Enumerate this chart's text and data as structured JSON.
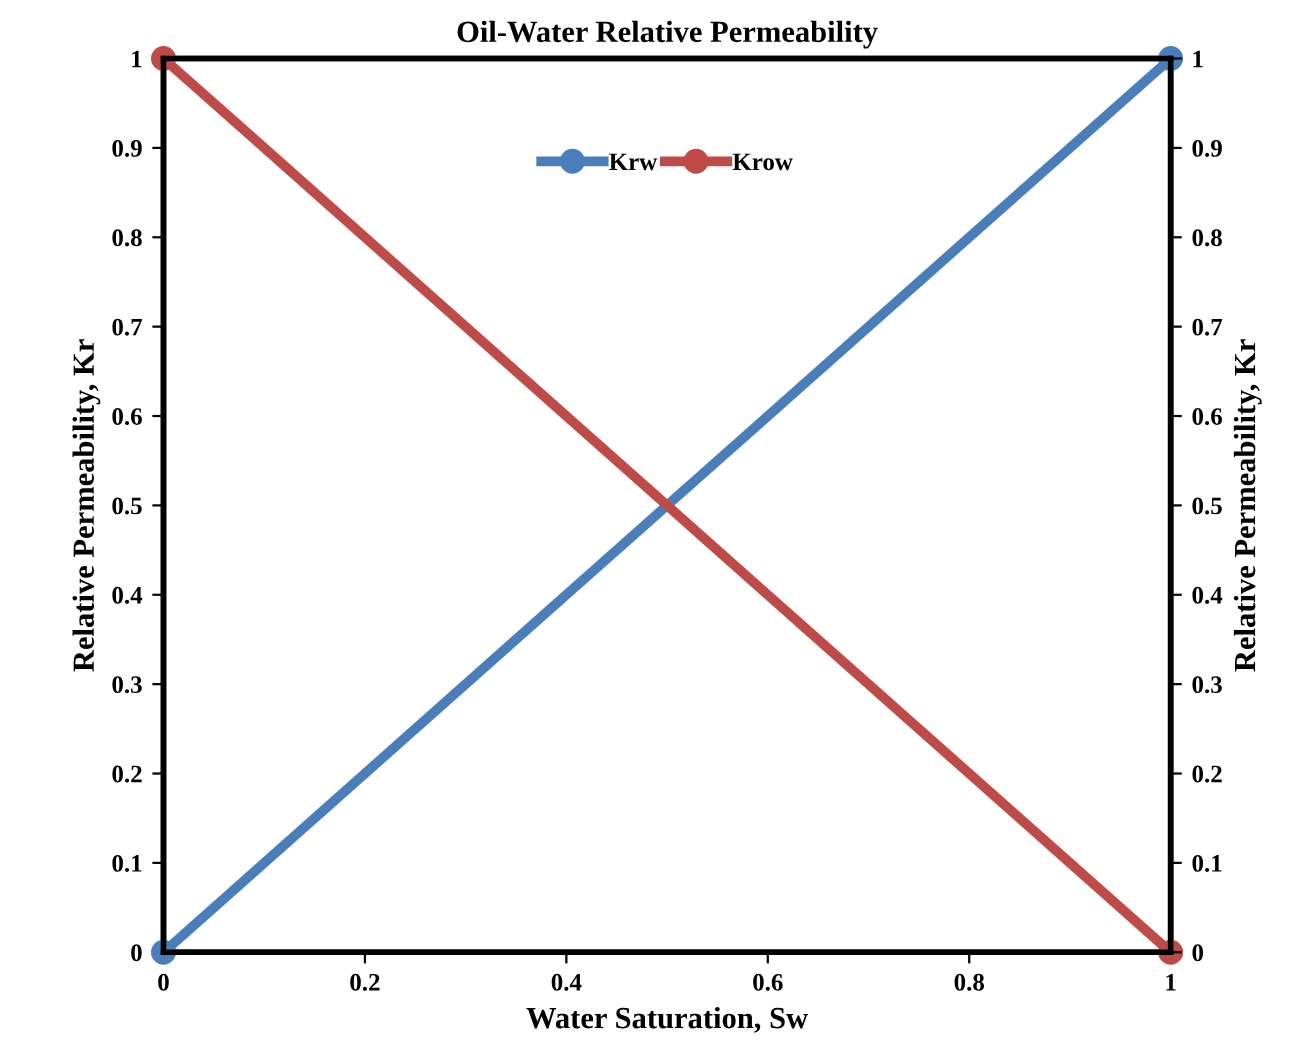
{
  "chart_data": {
    "type": "line",
    "title": "Oil-Water Relative Permeability",
    "xlabel": "Water Saturation, Sw",
    "ylabel": "Relative Permeability, Kr",
    "y2label": "Relative Permeability, Kr",
    "x": [
      0,
      1
    ],
    "series": [
      {
        "name": "Krw",
        "color": "#4a7ebb",
        "values": [
          0,
          1
        ]
      },
      {
        "name": "Krow",
        "color": "#be4b48",
        "values": [
          1,
          0
        ]
      }
    ],
    "xlim": [
      0,
      1
    ],
    "xticks": [
      0,
      0.2,
      0.4,
      0.6,
      0.8,
      1
    ],
    "ylim": [
      0,
      1
    ],
    "yticks": [
      0,
      0.1,
      0.2,
      0.3,
      0.4,
      0.5,
      0.6,
      0.7,
      0.8,
      0.9,
      1
    ],
    "y2lim": [
      0,
      1
    ],
    "y2ticks": [
      0,
      0.1,
      0.2,
      0.3,
      0.4,
      0.5,
      0.6,
      0.7,
      0.8,
      0.9,
      1
    ],
    "grid": false,
    "legend": "top",
    "marker": "circle",
    "line_style": "solid"
  }
}
